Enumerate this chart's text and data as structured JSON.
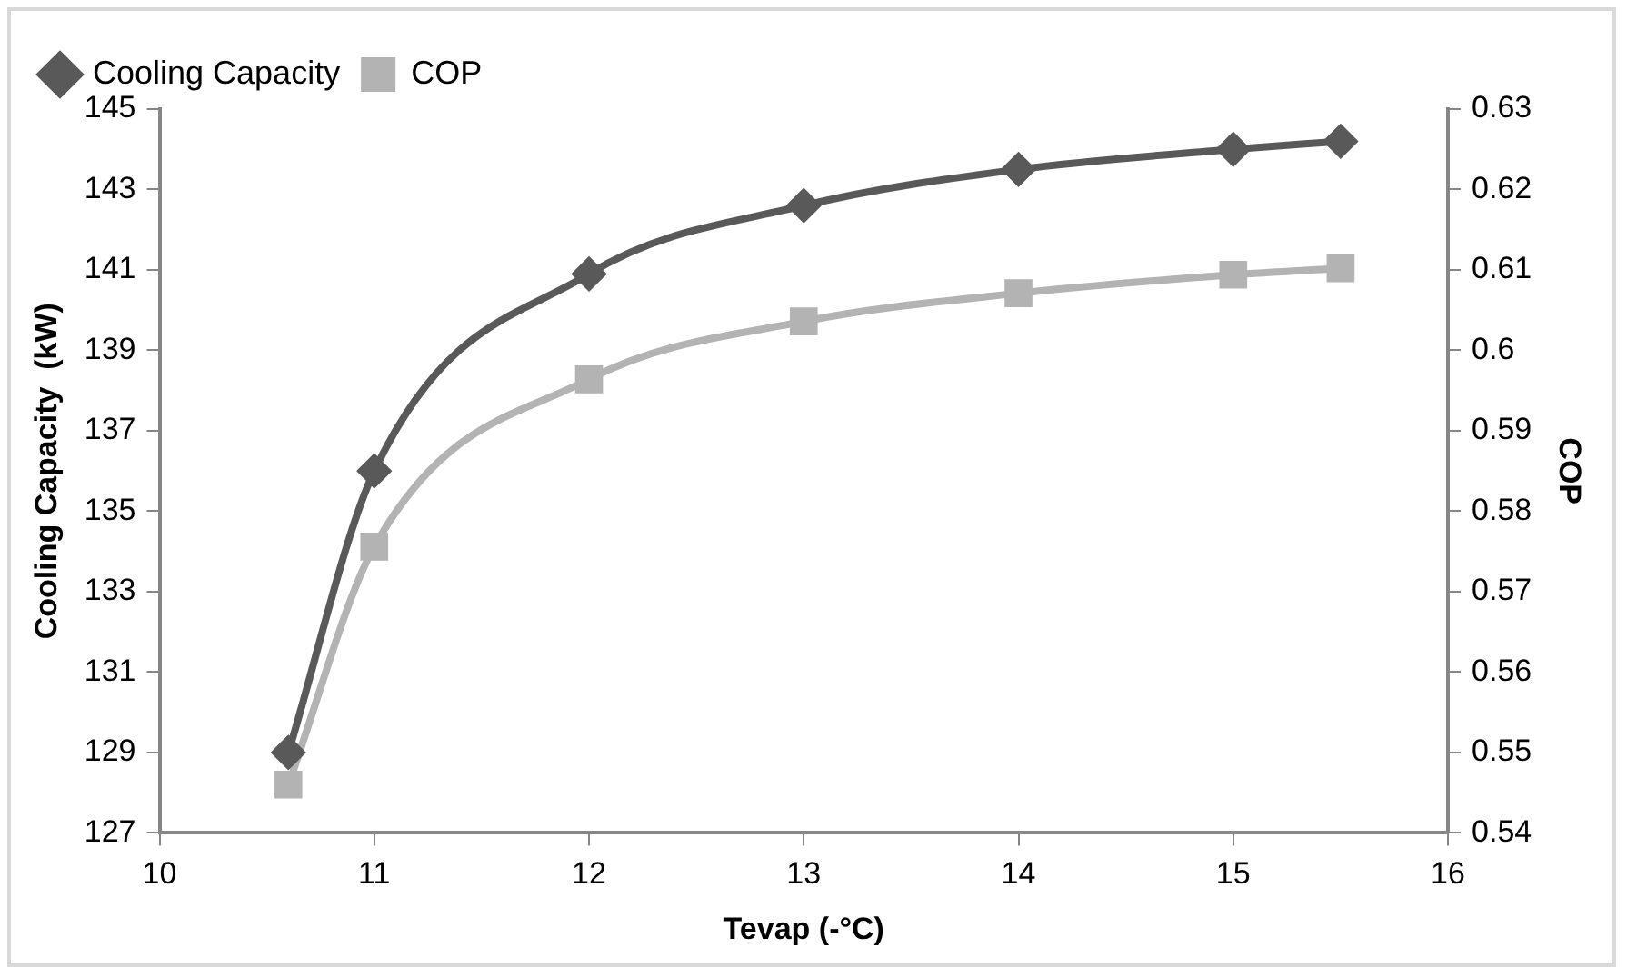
{
  "chart_data": {
    "type": "line",
    "xlabel": "Tevap (-°C)",
    "ylabel": "Cooling Capacity  (kW)",
    "y2label": "COP",
    "x": [
      10.6,
      11,
      12,
      13,
      14,
      15,
      15.5
    ],
    "series": [
      {
        "name": "Cooling Capacity",
        "color": "#595959",
        "marker": "diamond",
        "values": [
          129.0,
          136.0,
          140.9,
          142.6,
          143.5,
          144.0,
          144.2
        ]
      },
      {
        "name": "COP",
        "color": "#b3b3b3",
        "marker": "square",
        "axis": "y2",
        "values": [
          0.546,
          0.5756,
          0.5964,
          0.6036,
          0.6071,
          0.6094,
          0.6102
        ]
      }
    ],
    "xlim": [
      10,
      16
    ],
    "xticks": [
      10,
      11,
      12,
      13,
      14,
      15,
      16
    ],
    "ylim": [
      127,
      145
    ],
    "yticks": [
      127,
      129,
      131,
      133,
      135,
      137,
      139,
      141,
      143,
      145
    ],
    "y2lim": [
      0.54,
      0.63
    ],
    "y2ticks": [
      0.54,
      0.55,
      0.56,
      0.57,
      0.58,
      0.59,
      0.6,
      0.61,
      0.62,
      0.63
    ],
    "grid": false,
    "legend": "top left",
    "line_style": "solid"
  }
}
